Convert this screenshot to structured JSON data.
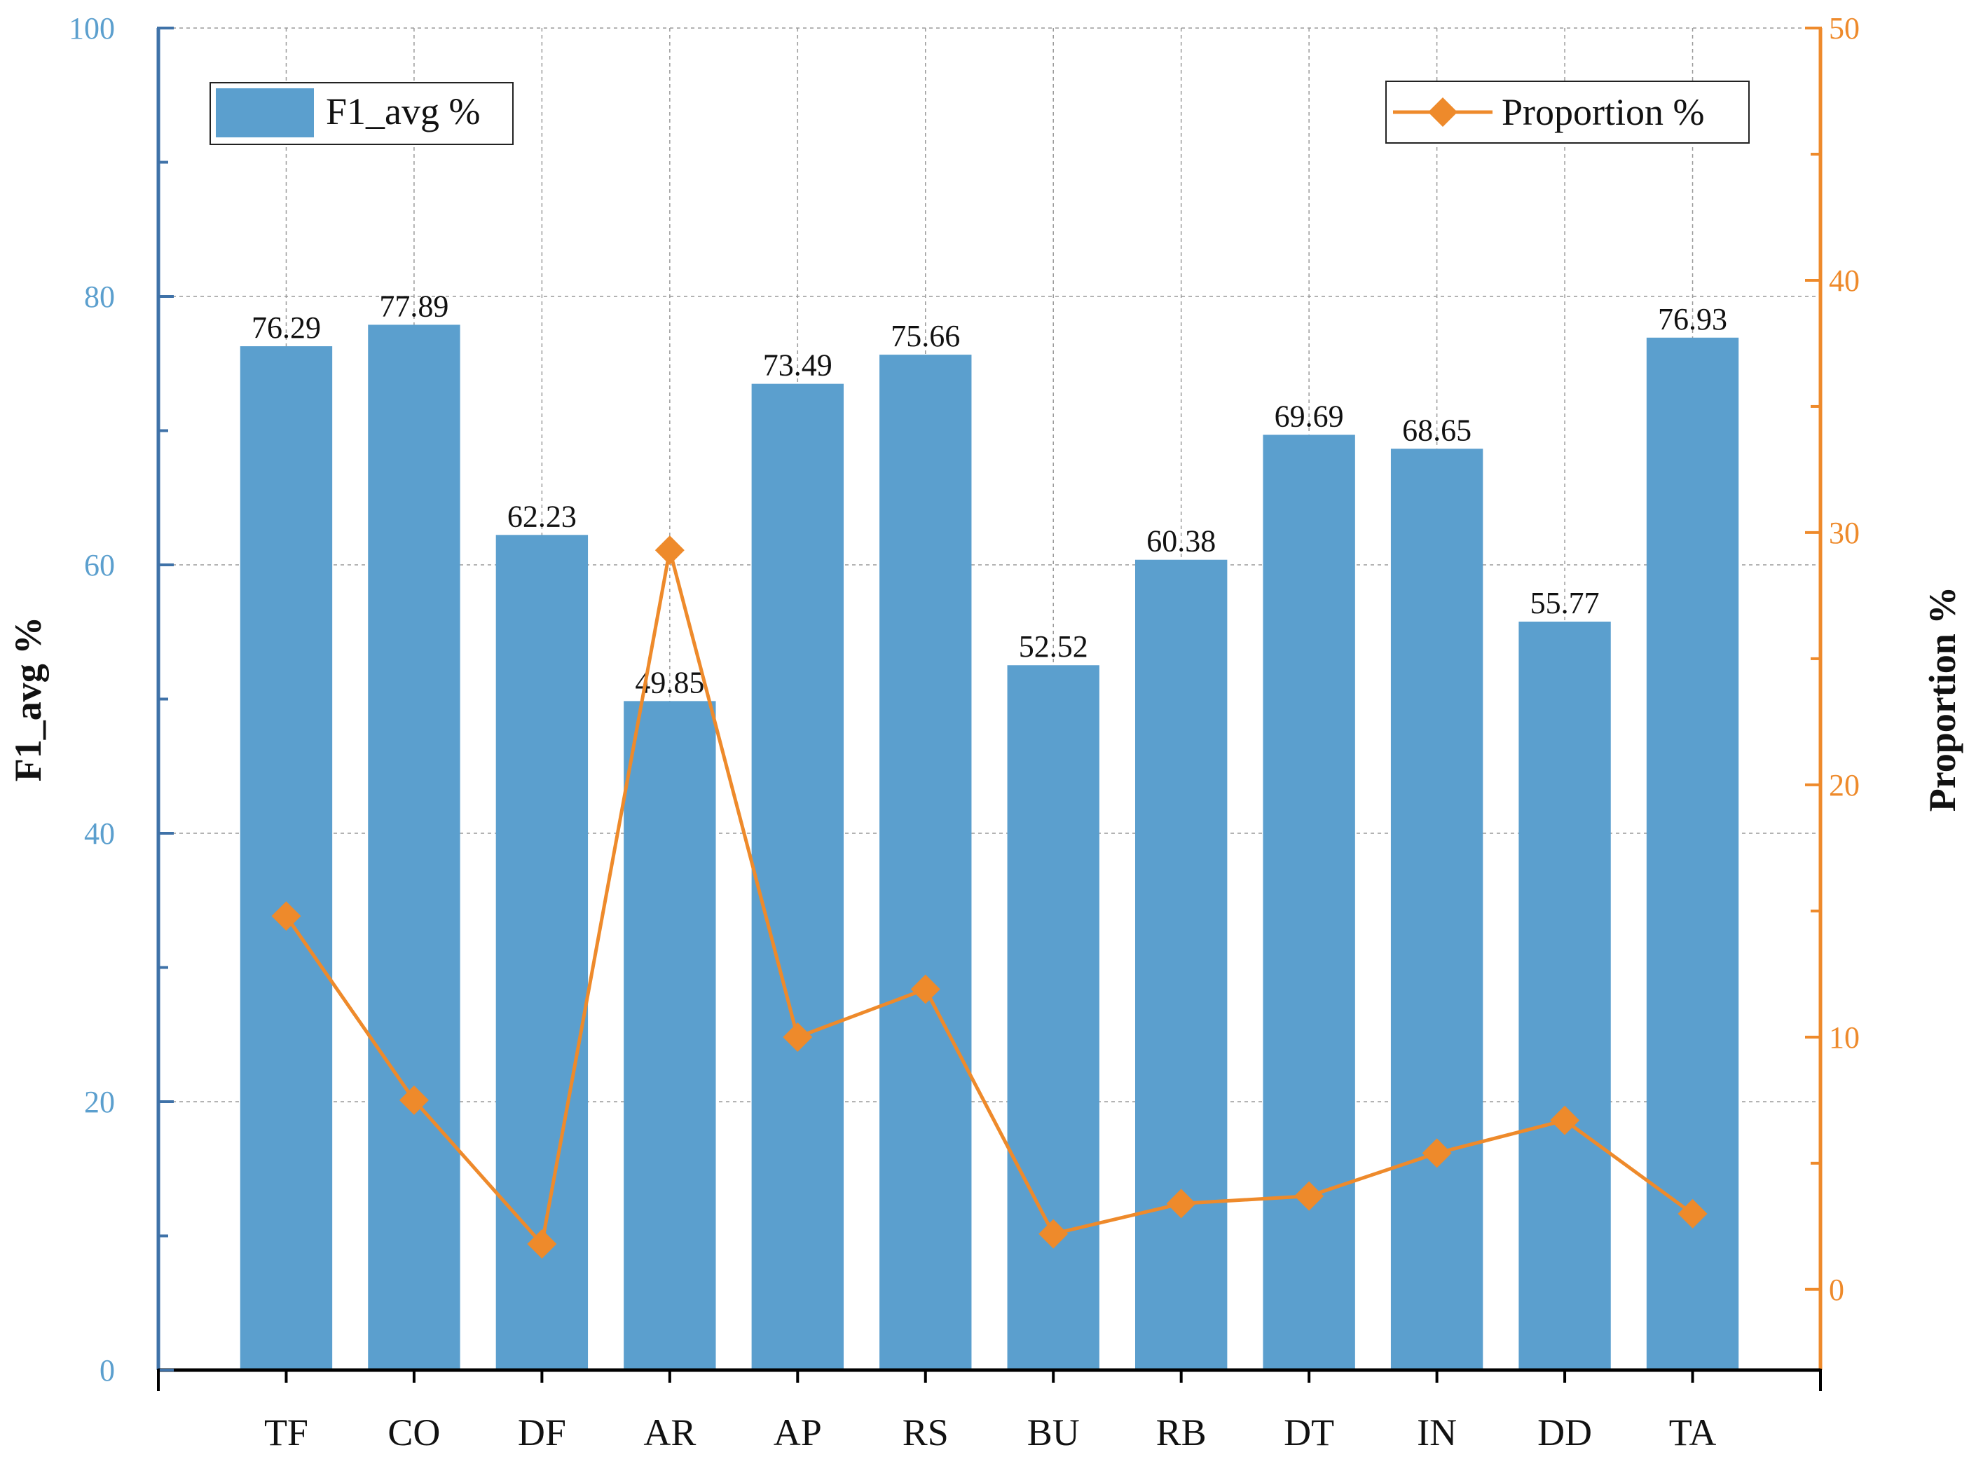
{
  "chart_data": {
    "type": "bar",
    "categories": [
      "TF",
      "CO",
      "DF",
      "AR",
      "AP",
      "RS",
      "BU",
      "RB",
      "DT",
      "IN",
      "DD",
      "TA"
    ],
    "series": [
      {
        "name": "F1_avg %",
        "kind": "bar",
        "axis": "left",
        "values": [
          76.29,
          77.89,
          62.23,
          49.85,
          73.49,
          75.66,
          52.52,
          60.38,
          69.69,
          68.65,
          55.77,
          76.93
        ],
        "labels": [
          "76.29",
          "77.89",
          "62.23",
          "49.85",
          "73.49",
          "75.66",
          "52.52",
          "60.38",
          "69.69",
          "68.65",
          "55.77",
          "76.93"
        ]
      },
      {
        "name": "Proportion %",
        "kind": "line",
        "marker": "diamond",
        "axis": "right",
        "values": [
          14.8,
          7.5,
          1.8,
          29.3,
          10.0,
          11.9,
          2.2,
          3.4,
          3.7,
          5.4,
          6.7,
          3.0
        ]
      }
    ],
    "ylabel": "F1_avg %",
    "y2label": "Proportion %",
    "ylim": [
      0,
      100
    ],
    "y2lim": [
      -3.2,
      50
    ],
    "yticks": [
      "0",
      "20",
      "40",
      "60",
      "80",
      "100"
    ],
    "y2ticks": [
      "0",
      "10",
      "20",
      "30",
      "40",
      "50"
    ],
    "grid": true,
    "legend": {
      "bar_position": "top-left",
      "line_position": "top-right"
    }
  },
  "colors": {
    "bar": "#5b9fce",
    "line": "#ee8a2b",
    "left_axis": "#3f72a8",
    "right_axis": "#ee8a2b",
    "tick_label_left": "#5b9fce",
    "tick_label_right": "#ee8a2b",
    "grid": "#9a9a9a",
    "text": "#111111"
  }
}
